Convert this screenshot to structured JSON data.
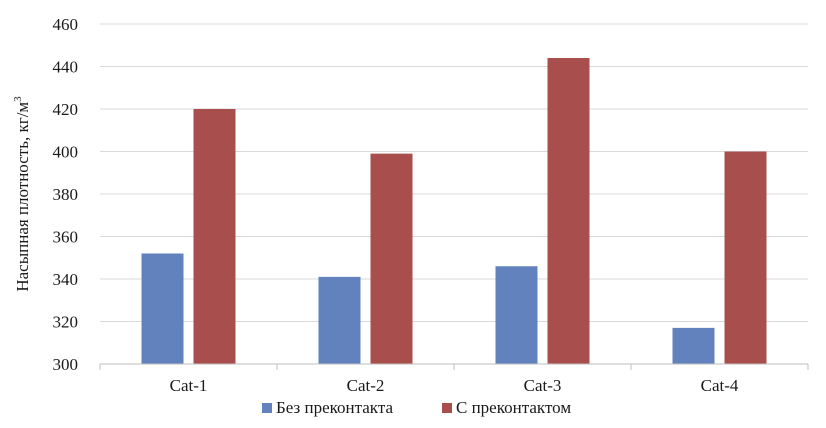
{
  "chart_data": {
    "type": "bar",
    "title": "",
    "xlabel": "",
    "ylabel": "Насыпная плотность, кг/м",
    "ylabel_sup": "3",
    "ylim": [
      300,
      460
    ],
    "ytick_step": 20,
    "yticks": [
      "300",
      "320",
      "340",
      "360",
      "380",
      "400",
      "420",
      "440",
      "460"
    ],
    "grid": true,
    "legend_position": "bottom",
    "categories": [
      "Cat-1",
      "Cat-2",
      "Cat-3",
      "Cat-4"
    ],
    "series": [
      {
        "name": "Без преконтакта",
        "color": "#6282bd",
        "values": [
          352,
          341,
          346,
          317
        ]
      },
      {
        "name": "С преконтактом",
        "color": "#a84f4d",
        "values": [
          420,
          399,
          444,
          400
        ]
      }
    ]
  }
}
